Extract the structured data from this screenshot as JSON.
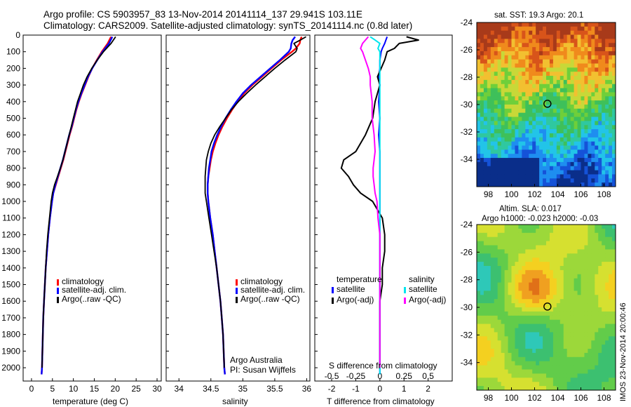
{
  "header": {
    "line1": "Argo profile: CS 5903957_83 13-Nov-2014 20141114_137 29.941S 103.11E",
    "line2": "Climatology: CARS2009. Satellite-adjusted climatology: synTS_20141114.nc (0.8d later)"
  },
  "stamp": "IMOS 23-Nov-2014 20:00:46",
  "colors": {
    "climatology": "#ff0000",
    "satellite": "#0000ff",
    "argo": "#000000",
    "sal_satellite": "#00e5ee",
    "sal_argo": "#ff00ff"
  },
  "chart_data": [
    {
      "type": "line",
      "name": "temperature-profile",
      "xlabel": "temperature (deg C)",
      "ylabel": "",
      "xlim": [
        -2,
        31
      ],
      "ylim": [
        2080,
        0
      ],
      "xticks": [
        0,
        5,
        10,
        15,
        20,
        25,
        30
      ],
      "yticks": [
        0,
        100,
        200,
        300,
        400,
        500,
        600,
        700,
        800,
        900,
        1000,
        1100,
        1200,
        1300,
        1400,
        1500,
        1600,
        1700,
        1800,
        1900,
        2000
      ],
      "depth": [
        10,
        50,
        100,
        150,
        200,
        250,
        300,
        350,
        400,
        450,
        500,
        550,
        600,
        650,
        700,
        750,
        800,
        850,
        900,
        950,
        1000,
        1100,
        1200,
        1300,
        1400,
        1500,
        1600,
        1700,
        1800,
        1900,
        2000,
        2040
      ],
      "series": [
        {
          "name": "climatology",
          "values": [
            19.0,
            18.2,
            16.8,
            15.6,
            14.5,
            13.6,
            12.8,
            12.0,
            11.3,
            10.7,
            10.2,
            9.7,
            9.1,
            8.6,
            8.1,
            7.6,
            7.0,
            6.4,
            5.8,
            5.2,
            4.9,
            4.4,
            4.0,
            3.7,
            3.4,
            3.2,
            3.0,
            2.8,
            2.7,
            2.6,
            2.5,
            2.4
          ]
        },
        {
          "name": "satellite-adj. clim.",
          "values": [
            19.3,
            18.5,
            17.0,
            15.7,
            14.5,
            13.5,
            12.7,
            11.9,
            11.2,
            10.6,
            10.1,
            9.6,
            9.0,
            8.5,
            8.0,
            7.5,
            6.9,
            6.3,
            5.7,
            5.2,
            4.9,
            4.4,
            4.0,
            3.7,
            3.4,
            3.2,
            3.0,
            2.8,
            2.7,
            2.6,
            2.5,
            2.4
          ]
        },
        {
          "name": "Argo(..raw -QC)",
          "values": [
            20.1,
            19.0,
            17.2,
            15.7,
            14.4,
            13.3,
            12.4,
            11.7,
            11.0,
            10.5,
            10.0,
            9.5,
            9.0,
            8.5,
            8.0,
            7.5,
            6.9,
            6.2,
            5.5,
            5.0,
            4.7,
            4.3,
            3.9,
            3.6,
            3.4,
            3.2,
            3.0,
            2.8,
            2.7,
            2.6,
            2.5,
            null
          ]
        }
      ],
      "legend": [
        "climatology",
        "satellite-adj. clim.",
        "Argo(..raw -QC)"
      ]
    },
    {
      "type": "line",
      "name": "salinity-profile",
      "xlabel": "salinity",
      "xlim": [
        33.8,
        36.05
      ],
      "xticks": [
        34,
        34.5,
        35,
        35.5,
        36
      ],
      "xticklabels": [
        "34",
        "34.5",
        "35",
        "35.5",
        "36"
      ],
      "depth": [
        10,
        30,
        50,
        80,
        100,
        150,
        200,
        250,
        300,
        350,
        400,
        450,
        500,
        550,
        600,
        650,
        700,
        750,
        800,
        850,
        900,
        950,
        1000,
        1100,
        1200,
        1300,
        1400,
        1500,
        1600,
        1700,
        1800,
        1900,
        2000,
        2040
      ],
      "series": [
        {
          "name": "climatology",
          "values": [
            35.92,
            35.9,
            35.89,
            35.83,
            35.77,
            35.6,
            35.45,
            35.3,
            35.15,
            35.02,
            34.92,
            34.83,
            34.75,
            34.68,
            34.62,
            34.57,
            34.53,
            34.5,
            34.48,
            34.46,
            34.45,
            34.45,
            34.46,
            34.49,
            34.53,
            34.56,
            34.59,
            34.62,
            34.65,
            34.67,
            34.69,
            34.7,
            34.71,
            34.72
          ]
        },
        {
          "name": "satellite-adj. clim.",
          "values": [
            35.82,
            35.78,
            35.76,
            35.75,
            35.72,
            35.58,
            35.43,
            35.28,
            35.13,
            35.0,
            34.9,
            34.81,
            34.73,
            34.66,
            34.6,
            34.55,
            34.51,
            34.49,
            34.47,
            34.46,
            34.45,
            34.45,
            34.46,
            34.49,
            34.53,
            34.56,
            34.59,
            34.62,
            34.65,
            34.67,
            34.69,
            34.7,
            34.71,
            34.72
          ]
        },
        {
          "name": "Argo(..raw -QC)",
          "values": [
            35.99,
            35.9,
            35.8,
            35.85,
            35.83,
            35.66,
            35.5,
            35.35,
            35.2,
            35.06,
            34.93,
            34.82,
            34.73,
            34.64,
            34.56,
            34.5,
            34.46,
            34.43,
            34.42,
            34.41,
            34.41,
            34.41,
            34.43,
            34.47,
            34.51,
            34.55,
            34.59,
            34.62,
            34.65,
            34.67,
            34.69,
            34.7,
            34.71,
            null
          ]
        }
      ],
      "legend": [
        "climatology",
        "satellite-adj. clim.",
        "Argo(..raw -QC)"
      ],
      "annotation": [
        "Argo Australia",
        "PI: Susan Wijffels"
      ]
    },
    {
      "type": "line",
      "name": "difference-profile",
      "xlabel": "T difference from climatology",
      "xlabel2": "S difference from climatology",
      "xlim": [
        -2.7,
        3.0
      ],
      "xticks": [
        -2,
        -1,
        0,
        1,
        2
      ],
      "s_ticks": [
        -0.5,
        -0.25,
        0,
        0.25,
        0.5
      ],
      "s_ticklabels": [
        "-0.5",
        "-0.25",
        "0",
        "0.25",
        "0.5"
      ],
      "depth": [
        10,
        30,
        50,
        80,
        100,
        150,
        200,
        250,
        300,
        400,
        500,
        600,
        700,
        750,
        800,
        850,
        900,
        950,
        1000,
        1100,
        1200,
        1300,
        1400,
        1500,
        1600,
        1700,
        1800,
        1900,
        2000,
        2040
      ],
      "series": [
        {
          "name": "temperature satellite",
          "values": [
            0.3,
            0.25,
            0.2,
            0.1,
            0.05,
            0.0,
            0.0,
            -0.05,
            0.0,
            -0.05,
            0.0,
            -0.05,
            0.0,
            0.0,
            0.0,
            0.0,
            0.0,
            0.0,
            0.0,
            0.0,
            0.0,
            0.0,
            0.0,
            0.0,
            0.0,
            0.0,
            0.0,
            0.0,
            0.0,
            0.0
          ]
        },
        {
          "name": "temperature Argo(-adj)",
          "values": [
            1.1,
            1.6,
            0.8,
            0.6,
            0.3,
            0.2,
            0.05,
            -0.1,
            0.0,
            -0.2,
            -0.3,
            -0.6,
            -1.0,
            -1.5,
            -1.6,
            -1.3,
            -1.1,
            -0.8,
            -0.3,
            0.1,
            0.2,
            0.2,
            0.1,
            0.1,
            0.0,
            0.0,
            0.0,
            0.0,
            0.0,
            null
          ]
        },
        {
          "name": "salinity satellite",
          "values": [
            -0.1,
            -0.05,
            0.0,
            -0.02,
            0.0,
            0.0,
            0.0,
            0.0,
            0.0,
            0.0,
            0.0,
            0.0,
            0.0,
            0.0,
            0.0,
            0.0,
            0.0,
            0.0,
            0.0,
            0.0,
            0.0,
            0.0,
            0.0,
            0.0,
            0.0,
            0.0,
            0.0,
            0.0,
            0.0,
            0.0
          ]
        },
        {
          "name": "salinity Argo(-adj)",
          "values": [
            -0.12,
            -0.15,
            -0.18,
            -0.2,
            -0.18,
            -0.15,
            -0.12,
            -0.1,
            -0.1,
            -0.08,
            -0.08,
            -0.06,
            -0.05,
            -0.06,
            -0.07,
            -0.07,
            -0.06,
            -0.05,
            -0.03,
            -0.02,
            0.0,
            0.0,
            0.0,
            0.0,
            0.0,
            0.0,
            0.0,
            0.0,
            0.0,
            null
          ]
        }
      ],
      "legend": {
        "temperature": "temperature",
        "salinity": "salinity",
        "satellite": "satellite",
        "argo": "Argo(-adj)"
      }
    },
    {
      "type": "heatmap",
      "name": "sst-map",
      "title": "sat. SST: 19.3  Argo: 20.1",
      "xlim": [
        97,
        109
      ],
      "ylim": [
        -36,
        -24
      ],
      "xticks": [
        98,
        100,
        102,
        104,
        106,
        108
      ],
      "yticks": [
        -24,
        -26,
        -28,
        -30,
        -32,
        -34
      ],
      "marker": [
        103.11,
        -29.941
      ]
    },
    {
      "type": "heatmap",
      "name": "sla-map",
      "title": "Altim. SLA: 0.017",
      "subtitle": "Argo h1000: -0.023  h2000: -0.03",
      "xlim": [
        97,
        109
      ],
      "ylim": [
        -36,
        -24
      ],
      "xticks": [
        98,
        100,
        102,
        104,
        106,
        108
      ],
      "yticks": [
        -24,
        -26,
        -28,
        -30,
        -32,
        -34
      ],
      "marker": [
        103.11,
        -29.941
      ]
    }
  ]
}
